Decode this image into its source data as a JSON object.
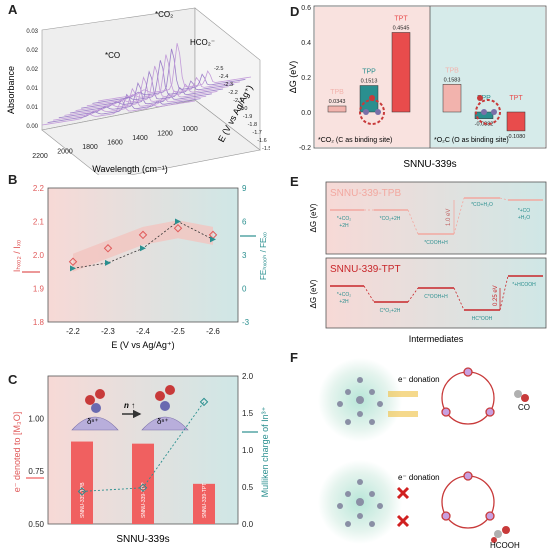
{
  "panels": {
    "A": {
      "letter": "A",
      "ylabel": "Absorbance",
      "xlabel": "Wavelength (cm⁻¹)",
      "zlabel": "E (V vs Ag/Ag⁺)",
      "peak_co": "*CO",
      "peak_co2": "*CO₂",
      "peak_hco2": "HCO₂⁻",
      "yticks": [
        "0.00",
        "0.01",
        "0.01",
        "0.02",
        "0.02",
        "0.03"
      ],
      "xticks": [
        "2200",
        "2000",
        "1800",
        "1600",
        "1400",
        "1200",
        "1000"
      ],
      "zticks": [
        "-1.5",
        "-1.6",
        "-1.7",
        "-1.8",
        "-1.9",
        "-2.0",
        "-2.1",
        "-2.2",
        "-2.3",
        "-2.4",
        "-2.5"
      ]
    },
    "B": {
      "letter": "B",
      "ylabel_left": "Iₕₓₒ₂ / Iₓₒ",
      "ylabel_right": "FEₕₓₒₒₕ / FEₓₒ",
      "xlabel": "E (V vs Ag/Ag⁺)",
      "colors": {
        "left": "#e05a5a",
        "right": "#2a8f8f",
        "band": "#f3c4bf"
      }
    },
    "C": {
      "letter": "C",
      "ylabel_left": "e⁻ denoted to [M₃O]",
      "ylabel_right": "Mulliken charge of In³⁺",
      "xlabel": "SNNU-339s",
      "arrow_label": "n ↑",
      "delta": "δⁿ⁺",
      "colors": {
        "bar": "#f06060",
        "line": "#2a8f8f"
      }
    },
    "D": {
      "letter": "D",
      "ylabel": "ΔG (eV)",
      "xlabel": "SNNU-339s",
      "caption_left": "*CO₂ (C as binding site)",
      "caption_right": "*O₂C (O as binding site)",
      "colors": {
        "TPB": "#f2b3ad",
        "TPP": "#2a8f8f",
        "TPT": "#e84c4c"
      }
    },
    "E": {
      "letter": "E",
      "ylabel": "ΔG (eV)",
      "xlabel": "Intermediates",
      "top_title": "SNNU-339-TPB",
      "bottom_title": "SNNU-339-TPT",
      "top_steps": [
        "*+CO₂\n+2H",
        "*CO₂+2H",
        "*COOH+H",
        "*CO+H₂O",
        "*+CO\n+H₂O"
      ],
      "bottom_steps": [
        "*+CO₂\n+2H",
        "C*O₂+2H",
        "C*OOH+H",
        "HC*OOH",
        "*+HCOOH"
      ],
      "top_barrier": "1.0 eV",
      "bottom_barrier": "0.25 eV",
      "colors": {
        "top": "#f2a8a0",
        "bottom": "#c8262a"
      }
    },
    "F": {
      "letter": "F",
      "top_arrow": "e⁻ donation",
      "bottom_arrow": "e⁻ donation",
      "top_product": "CO",
      "bottom_product": "HCOOH"
    }
  },
  "chart_data": [
    {
      "type": "scatter",
      "panel": "B",
      "x": [
        -2.2,
        -2.3,
        -2.4,
        -2.5,
        -2.6
      ],
      "xticks": [
        "-2.2",
        "-2.3",
        "-2.4",
        "-2.5",
        "-2.6"
      ],
      "series": [
        {
          "name": "",
          "axis": "left",
          "values": [
            1.98,
            2.02,
            2.06,
            2.08,
            2.06
          ]
        },
        {
          "name": "",
          "axis": "right",
          "values": [
            1.8,
            2.3,
            3.6,
            6.0,
            4.4
          ]
        }
      ],
      "ylim_left": [
        1.8,
        2.2
      ],
      "yticks_left": [
        "1.8",
        "1.9",
        "2.0",
        "2.1",
        "2.2"
      ],
      "ylim_right": [
        -3,
        9
      ],
      "yticks_right": [
        "-3",
        "0",
        "3",
        "6",
        "9"
      ]
    },
    {
      "type": "bar",
      "panel": "C",
      "categories": [
        "SNNU-339-TPB",
        "SNNU-339-TPP",
        "SNNU-339-TPT"
      ],
      "values": [
        0.89,
        0.88,
        0.69
      ],
      "line_values": [
        0.44,
        0.49,
        1.65
      ],
      "ylim_left": [
        0.5,
        1.2
      ],
      "yticks_left": [
        "0.50",
        "0.75",
        "1.00"
      ],
      "ylim_right": [
        0.0,
        2.0
      ],
      "yticks_right": [
        "0.0",
        "0.5",
        "1.0",
        "1.5",
        "2.0"
      ]
    },
    {
      "type": "bar",
      "panel": "D",
      "groups": [
        {
          "categories": [
            "TPB",
            "TPP",
            "TPT"
          ],
          "values": [
            0.0343,
            0.1513,
            0.4545
          ],
          "labels": [
            "0.0343",
            "0.1513",
            "0.4545"
          ]
        },
        {
          "categories": [
            "TPB",
            "TPP",
            "TPT"
          ],
          "values": [
            0.1583,
            -0.0382,
            -0.108
          ],
          "labels": [
            "0.1583",
            "-0.0382",
            "-0.1080"
          ]
        }
      ],
      "ylim": [
        -0.2,
        0.6
      ],
      "yticks": [
        "-0.2",
        "0.0",
        "0.2",
        "0.4",
        "0.6"
      ]
    }
  ]
}
